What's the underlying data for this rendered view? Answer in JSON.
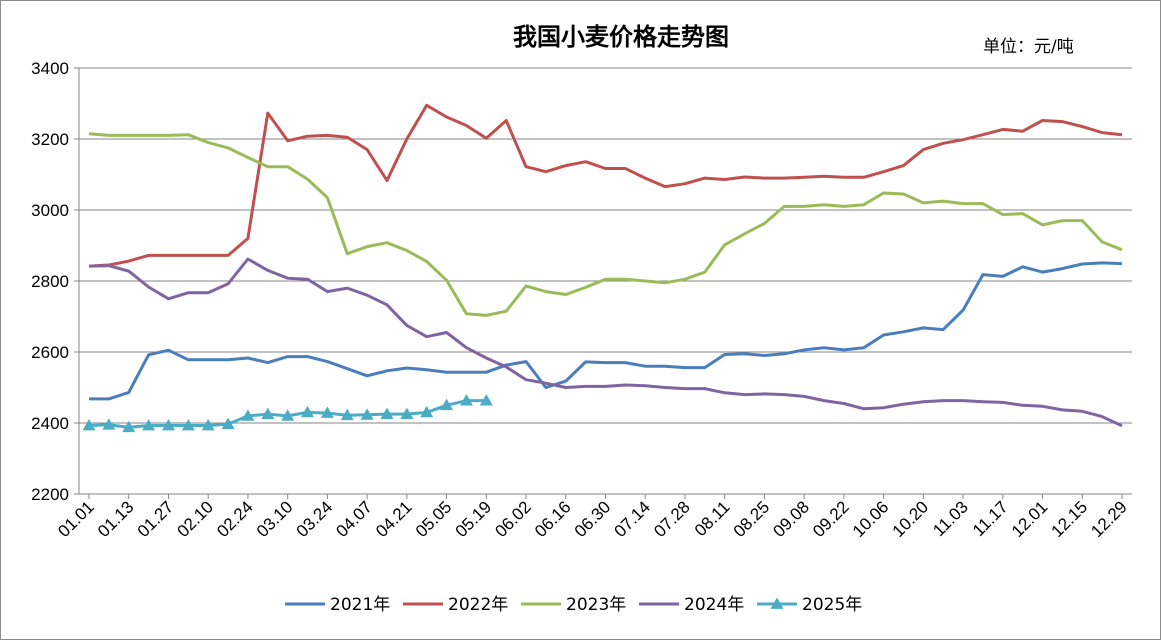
{
  "chart_data": {
    "type": "line",
    "title": "我国小麦价格走势图",
    "unit": "单位：元/吨",
    "xlabel": "",
    "ylabel": "",
    "ylim": [
      2200,
      3400
    ],
    "yticks": [
      "2200",
      "2400",
      "2600",
      "2800",
      "3000",
      "3200",
      "3400"
    ],
    "grid": true,
    "legend_position": "bottom",
    "x_tick_labels": [
      "01.01",
      "01.13",
      "01.27",
      "02.10",
      "02.24",
      "03.10",
      "03.24",
      "04.07",
      "04.21",
      "05.05",
      "05.19",
      "06.02",
      "06.16",
      "06.30",
      "07.14",
      "07.28",
      "08.11",
      "08.25",
      "09.08",
      "09.22",
      "10.06",
      "10.20",
      "11.03",
      "11.17",
      "12.01",
      "12.15",
      "12.29"
    ],
    "series": [
      {
        "name": "2021年",
        "color": "#4a7ebb",
        "marker": "none",
        "values": [
          2468,
          2468,
          2486,
          2592,
          2605,
          2578,
          2578,
          2578,
          2583,
          2570,
          2587,
          2587,
          2573,
          2553,
          2533,
          2547,
          2555,
          2550,
          2543,
          2543,
          2543,
          2563,
          2573,
          2500,
          2518,
          2572,
          2570,
          2570,
          2560,
          2560,
          2556,
          2556,
          2593,
          2595,
          2590,
          2595,
          2606,
          2612,
          2606,
          2612,
          2648,
          2657,
          2668,
          2663,
          2718,
          2818,
          2813,
          2840,
          2825,
          2835,
          2848,
          2851,
          2849
        ]
      },
      {
        "name": "2022年",
        "color": "#c0504d",
        "marker": "none",
        "values": [
          2842,
          2845,
          2856,
          2872,
          2872,
          2872,
          2872,
          2872,
          2920,
          3273,
          3195,
          3208,
          3210,
          3205,
          3170,
          3083,
          3200,
          3295,
          3262,
          3238,
          3202,
          3252,
          3122,
          3108,
          3125,
          3136,
          3117,
          3117,
          3090,
          3066,
          3074,
          3090,
          3086,
          3093,
          3090,
          3090,
          3092,
          3095,
          3092,
          3092,
          3108,
          3125,
          3170,
          3188,
          3198,
          3212,
          3227,
          3222,
          3252,
          3249,
          3235,
          3218,
          3212
        ]
      },
      {
        "name": "2023年",
        "color": "#9bbb59",
        "marker": "none",
        "values": [
          3215,
          3210,
          3210,
          3210,
          3210,
          3212,
          3190,
          3175,
          3148,
          3122,
          3122,
          3087,
          3035,
          2877,
          2897,
          2908,
          2886,
          2855,
          2802,
          2708,
          2703,
          2715,
          2786,
          2770,
          2762,
          2782,
          2805,
          2805,
          2800,
          2795,
          2805,
          2825,
          2902,
          2933,
          2962,
          3010,
          3010,
          3015,
          3010,
          3015,
          3048,
          3045,
          3020,
          3025,
          3018,
          3018,
          2987,
          2990,
          2958,
          2970,
          2970,
          2910,
          2888
        ]
      },
      {
        "name": "2024年",
        "color": "#8064a2",
        "marker": "none",
        "values": [
          2842,
          2843,
          2828,
          2783,
          2750,
          2767,
          2767,
          2792,
          2862,
          2830,
          2808,
          2805,
          2770,
          2780,
          2760,
          2733,
          2675,
          2643,
          2655,
          2612,
          2583,
          2558,
          2522,
          2512,
          2500,
          2503,
          2503,
          2507,
          2505,
          2500,
          2497,
          2497,
          2485,
          2480,
          2482,
          2480,
          2475,
          2463,
          2455,
          2440,
          2443,
          2453,
          2460,
          2463,
          2463,
          2460,
          2458,
          2450,
          2447,
          2437,
          2433,
          2418,
          2392
        ]
      },
      {
        "name": "2025年",
        "color": "#4bacc6",
        "marker": "triangle",
        "values": [
          2393,
          2395,
          2388,
          2393,
          2393,
          2393,
          2393,
          2397,
          2420,
          2425,
          2420,
          2430,
          2428,
          2422,
          2423,
          2425,
          2425,
          2430,
          2450,
          2463,
          2463
        ]
      }
    ]
  }
}
